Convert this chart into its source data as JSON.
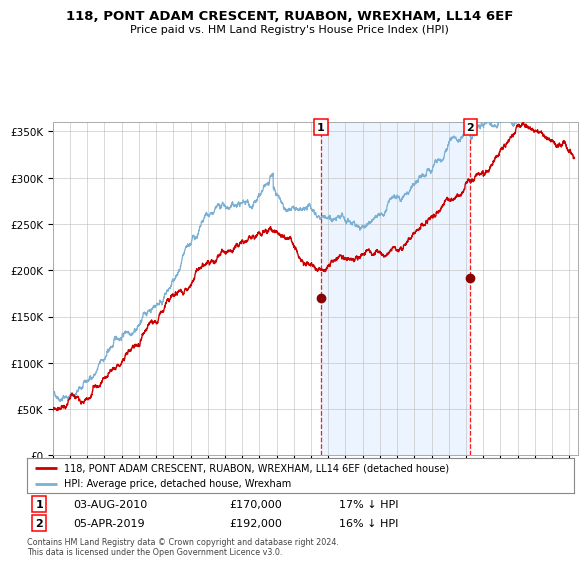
{
  "title": "118, PONT ADAM CRESCENT, RUABON, WREXHAM, LL14 6EF",
  "subtitle": "Price paid vs. HM Land Registry's House Price Index (HPI)",
  "footer": "Contains HM Land Registry data © Crown copyright and database right 2024.\nThis data is licensed under the Open Government Licence v3.0.",
  "legend_line1": "118, PONT ADAM CRESCENT, RUABON, WREXHAM, LL14 6EF (detached house)",
  "legend_line2": "HPI: Average price, detached house, Wrexham",
  "purchase1_date": 2010.58,
  "purchase1_price": 170000,
  "purchase2_date": 2019.25,
  "purchase2_price": 192000,
  "hpi_color": "#7ab0d4",
  "price_color": "#cc0000",
  "marker_color": "#880000",
  "shade_color": "#ddeeff",
  "grid_color": "#bbbbbb",
  "ylim": [
    0,
    360000
  ],
  "xlim_start": 1995.0,
  "xlim_end": 2025.5
}
